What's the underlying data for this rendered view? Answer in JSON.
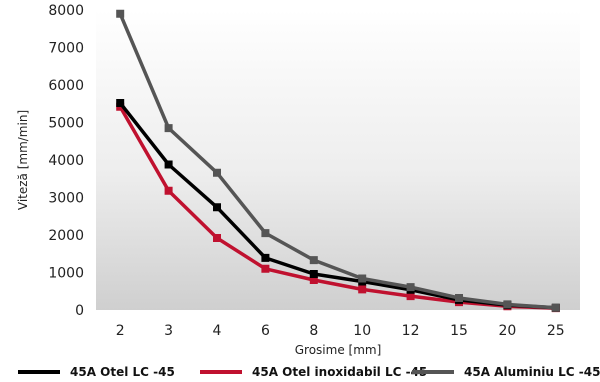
{
  "chart_data": {
    "type": "line",
    "categories": [
      "2",
      "3",
      "4",
      "6",
      "8",
      "10",
      "12",
      "15",
      "20",
      "25"
    ],
    "series": [
      {
        "name": "45A Otel LC -45",
        "color": "#000000",
        "values": [
          5520,
          3880,
          2740,
          1390,
          960,
          760,
          540,
          270,
          130,
          60
        ]
      },
      {
        "name": "45A Otel inoxidabil LC -45",
        "color": "#c0112f",
        "values": [
          5420,
          3180,
          1920,
          1100,
          800,
          550,
          370,
          210,
          100,
          50
        ]
      },
      {
        "name": "45A Aluminiu LC -45",
        "color": "#555555",
        "values": [
          7900,
          4850,
          3660,
          2050,
          1330,
          840,
          610,
          320,
          150,
          60
        ]
      }
    ],
    "xlabel": "Grosime [mm]",
    "ylabel": "Viteză [mm/min]",
    "ylim": [
      0,
      8000
    ],
    "yticks": [
      "0",
      "1000",
      "2000",
      "3000",
      "4000",
      "5000",
      "6000",
      "7000",
      "8000"
    ],
    "grid": false,
    "background": "gradient-grey",
    "legend_position": "bottom"
  }
}
